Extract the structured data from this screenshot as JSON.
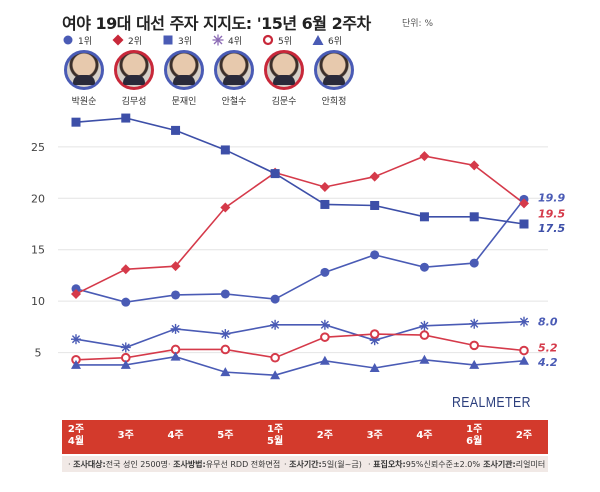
{
  "title": "여야 19대 대선 주자 지지도: '15년 6월 2주차",
  "unit_note": "단위: %",
  "legend": [
    {
      "rank": "1위",
      "marker": "circle",
      "color": "#4a5bb5"
    },
    {
      "rank": "2위",
      "marker": "diamond",
      "color": "#c8283a"
    },
    {
      "rank": "3위",
      "marker": "square",
      "color": "#4a5bb5"
    },
    {
      "rank": "4위",
      "marker": "asterisk",
      "color": "#8c6bb5"
    },
    {
      "rank": "5위",
      "marker": "ring",
      "color": "#c8283a"
    },
    {
      "rank": "6위",
      "marker": "triangle",
      "color": "#4a5bb5"
    }
  ],
  "candidates": [
    {
      "name": "박원순",
      "border": "#4a5bb5"
    },
    {
      "name": "김무성",
      "border": "#c8283a"
    },
    {
      "name": "문재인",
      "border": "#4a5bb5"
    },
    {
      "name": "안철수",
      "border": "#4a5bb5"
    },
    {
      "name": "김문수",
      "border": "#c8283a"
    },
    {
      "name": "안희정",
      "border": "#4a5bb5"
    }
  ],
  "chart_data": {
    "type": "line",
    "categories": [
      "2주\n4월",
      "3주",
      "4주",
      "5주",
      "1주\n5월",
      "2주",
      "3주",
      "4주",
      "1주\n6월",
      "2주"
    ],
    "ylim": [
      0,
      28
    ],
    "yticks": [
      5,
      10,
      15,
      20,
      25
    ],
    "series": [
      {
        "name": "박원순",
        "color": "#4a5bb5",
        "marker": "circle",
        "values": [
          11.2,
          9.9,
          10.6,
          10.7,
          10.2,
          12.8,
          14.5,
          13.3,
          13.7,
          19.9
        ],
        "end_label": "19.9"
      },
      {
        "name": "김무성",
        "color": "#d53a4a",
        "marker": "diamond",
        "values": [
          10.7,
          13.1,
          13.4,
          19.1,
          22.5,
          21.1,
          22.1,
          24.1,
          23.2,
          19.5
        ],
        "end_label": "19.5"
      },
      {
        "name": "문재인",
        "color": "#3d4fa8",
        "marker": "square",
        "values": [
          27.4,
          27.8,
          26.6,
          24.7,
          22.4,
          19.4,
          19.3,
          18.2,
          18.2,
          17.5
        ],
        "end_label": "17.5"
      },
      {
        "name": "안철수",
        "color": "#4a5bb5",
        "marker": "asterisk",
        "values": [
          6.3,
          5.5,
          7.3,
          6.8,
          7.7,
          7.7,
          6.2,
          7.6,
          7.8,
          8.0
        ],
        "end_label": "8.0"
      },
      {
        "name": "김문수",
        "color": "#d53a4a",
        "marker": "ring",
        "values": [
          4.3,
          4.5,
          5.3,
          5.3,
          4.5,
          6.5,
          6.8,
          6.7,
          5.7,
          5.2
        ],
        "end_label": "5.2"
      },
      {
        "name": "안희정",
        "color": "#4a5bb5",
        "marker": "triangle",
        "values": [
          3.8,
          3.8,
          4.6,
          3.1,
          2.8,
          4.2,
          3.5,
          4.3,
          3.8,
          4.2
        ],
        "end_label": "4.2"
      }
    ]
  },
  "brand": "REALMETER",
  "notes": [
    {
      "label": "조사대상:",
      "text": "전국 성인 2500명"
    },
    {
      "label": "조사방법:",
      "text": "유무선 RDD 전화면접"
    },
    {
      "label": "조사기간:",
      "text": "5일(월~금)"
    },
    {
      "label": "표집오차:",
      "text": "95%신뢰수준±2.0%"
    },
    {
      "label": "조사기관:",
      "text": "리얼미터"
    }
  ]
}
